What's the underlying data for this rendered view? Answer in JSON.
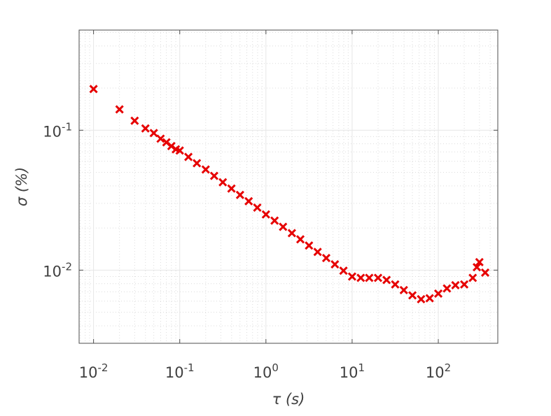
{
  "chart_data": {
    "type": "scatter",
    "xlabel": "τ (s)",
    "ylabel": "σ (%)",
    "xscale": "log",
    "yscale": "log",
    "grid": true,
    "minor_grid": true,
    "marker": "x",
    "xlim": [
      0.0068,
      490
    ],
    "ylim": [
      0.003,
      0.52
    ],
    "xticks": [
      {
        "value": 0.01,
        "label": "10^-2"
      },
      {
        "value": 0.1,
        "label": "10^-1"
      },
      {
        "value": 1,
        "label": "10^0"
      },
      {
        "value": 10,
        "label": "10^1"
      },
      {
        "value": 100,
        "label": "10^2"
      }
    ],
    "yticks": [
      {
        "value": 0.01,
        "label": "10^-2"
      },
      {
        "value": 0.1,
        "label": "10^-1"
      }
    ],
    "series": [
      {
        "color": "#e60000",
        "x": [
          0.01,
          0.02,
          0.03,
          0.04,
          0.05,
          0.06,
          0.07,
          0.08,
          0.09,
          0.1,
          0.126,
          0.158,
          0.2,
          0.251,
          0.316,
          0.398,
          0.501,
          0.631,
          0.794,
          1,
          1.26,
          1.58,
          2,
          2.51,
          3.16,
          3.98,
          5.01,
          6.31,
          7.94,
          10,
          12.6,
          15.8,
          20,
          25.1,
          31.6,
          39.8,
          50.1,
          63.1,
          79.4,
          100,
          126,
          158,
          200,
          251,
          280,
          300,
          350
        ],
        "values": [
          0.197,
          0.141,
          0.117,
          0.103,
          0.0955,
          0.087,
          0.082,
          0.077,
          0.073,
          0.0716,
          0.0645,
          0.0581,
          0.0524,
          0.0472,
          0.0425,
          0.0383,
          0.0345,
          0.0311,
          0.028,
          0.025,
          0.0226,
          0.0204,
          0.0184,
          0.0166,
          0.015,
          0.0135,
          0.0122,
          0.011,
          0.0099,
          0.009,
          0.0088,
          0.0088,
          0.0088,
          0.0085,
          0.0079,
          0.0072,
          0.0066,
          0.0062,
          0.0063,
          0.0068,
          0.0074,
          0.0078,
          0.0079,
          0.0088,
          0.0105,
          0.0114,
          0.0096
        ]
      }
    ]
  }
}
